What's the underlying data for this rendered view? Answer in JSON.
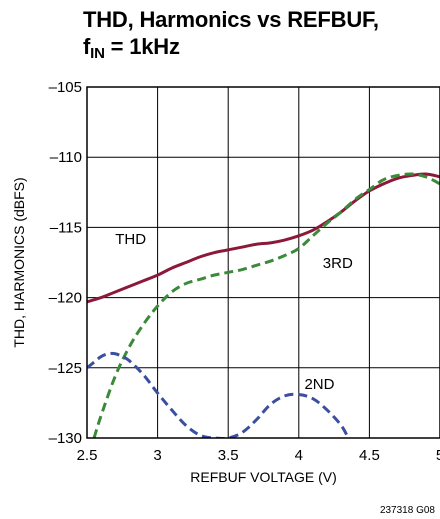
{
  "chart_data": {
    "type": "line",
    "title_line1": "THD, Harmonics vs REFBUF,",
    "title_line2_prefix": "f",
    "title_line2_sub": "IN",
    "title_line2_suffix": " = 1kHz",
    "xlabel": "REFBUF VOLTAGE (V)",
    "ylabel": "THD, HARMONICS (dBFS)",
    "xlim": [
      2.5,
      5
    ],
    "ylim": [
      -130,
      -105
    ],
    "x_ticks": [
      2.5,
      3,
      3.5,
      4,
      4.5,
      5
    ],
    "x_tick_labels": [
      "2.5",
      "3",
      "3.5",
      "4",
      "4.5",
      "5"
    ],
    "y_ticks": [
      -105,
      -110,
      -115,
      -120,
      -125,
      -130
    ],
    "y_tick_labels": [
      "–105",
      "–110",
      "–115",
      "–120",
      "–125",
      "–130"
    ],
    "grid": true,
    "series": [
      {
        "name": "THD",
        "color": "#8b1a3a",
        "style": "solid",
        "label_at": [
          2.7,
          -116.2
        ],
        "x": [
          2.5,
          2.6,
          2.7,
          2.8,
          2.9,
          3.0,
          3.1,
          3.2,
          3.3,
          3.4,
          3.5,
          3.6,
          3.7,
          3.8,
          3.9,
          4.0,
          4.1,
          4.2,
          4.3,
          4.4,
          4.5,
          4.6,
          4.7,
          4.8,
          4.9,
          5.0
        ],
        "y": [
          -120.3,
          -120.0,
          -119.6,
          -119.2,
          -118.8,
          -118.4,
          -117.9,
          -117.5,
          -117.1,
          -116.8,
          -116.6,
          -116.4,
          -116.2,
          -116.1,
          -115.9,
          -115.6,
          -115.2,
          -114.6,
          -113.9,
          -113.1,
          -112.4,
          -111.9,
          -111.5,
          -111.3,
          -111.2,
          -111.4
        ]
      },
      {
        "name": "3RD",
        "color": "#3a8a3a",
        "style": "dashed",
        "label_at": [
          4.17,
          -117.9
        ],
        "x": [
          2.55,
          2.6,
          2.7,
          2.8,
          2.9,
          3.0,
          3.1,
          3.2,
          3.3,
          3.4,
          3.5,
          3.6,
          3.7,
          3.8,
          3.9,
          4.0,
          4.1,
          4.2,
          4.3,
          4.4,
          4.5,
          4.6,
          4.7,
          4.8,
          4.9,
          5.0
        ],
        "y": [
          -130.0,
          -128.4,
          -125.6,
          -123.5,
          -121.9,
          -120.6,
          -119.6,
          -119.0,
          -118.7,
          -118.4,
          -118.2,
          -118.0,
          -117.7,
          -117.4,
          -117.0,
          -116.5,
          -115.6,
          -114.7,
          -113.9,
          -113.0,
          -112.3,
          -111.6,
          -111.3,
          -111.2,
          -111.4,
          -111.9
        ]
      },
      {
        "name": "2ND",
        "color": "#3a4fa0",
        "style": "dashed",
        "label_at": [
          4.04,
          -126.5
        ],
        "x": [
          2.5,
          2.55,
          2.6,
          2.65,
          2.7,
          2.75,
          2.8,
          2.9,
          3.0,
          3.1,
          3.2,
          3.3,
          3.4,
          3.5,
          3.6,
          3.7,
          3.8,
          3.9,
          4.0,
          4.1,
          4.2,
          4.3,
          4.35
        ],
        "y": [
          -125.0,
          -124.6,
          -124.2,
          -124.0,
          -124.0,
          -124.2,
          -124.5,
          -125.5,
          -126.8,
          -128.0,
          -129.1,
          -129.8,
          -130.0,
          -130.0,
          -129.6,
          -128.7,
          -127.6,
          -127.0,
          -126.9,
          -127.2,
          -128.0,
          -129.1,
          -130.0
        ]
      }
    ]
  },
  "figure_code": "237318 G08"
}
